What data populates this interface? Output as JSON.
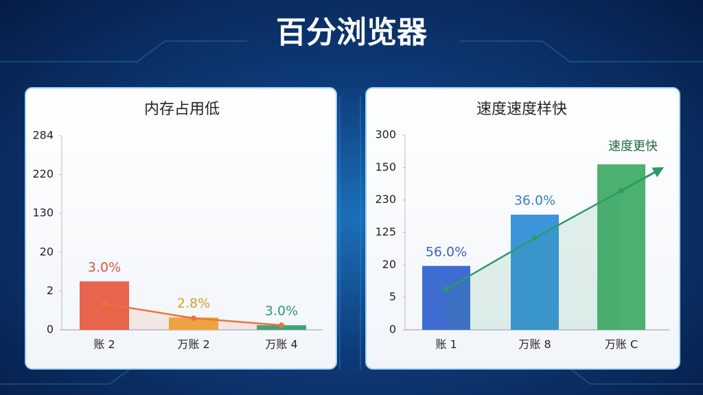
{
  "title": "百分浏览器",
  "chart_data": [
    {
      "type": "bar",
      "title": "内存占用低",
      "categories": [
        "账 2",
        "万账 2",
        "万账 4"
      ],
      "values": [
        1.25,
        0.32,
        0.12
      ],
      "colors": [
        "#e8644c",
        "#f0aa44",
        "#3aa57c"
      ],
      "line": {
        "values": [
          0.67,
          0.3,
          0.12
        ],
        "color": "#e8743c"
      },
      "annotations": [
        "3.0%",
        "2.8%",
        "3.0%"
      ],
      "annotation_colors": [
        "#d9523a",
        "#e09a2c",
        "#2f9a6a"
      ],
      "ylim": [
        0,
        5
      ],
      "yticks": [
        {
          "value": 0,
          "label": "0"
        },
        {
          "value": 1,
          "label": "2"
        },
        {
          "value": 2,
          "label": "20"
        },
        {
          "value": 3,
          "label": "130"
        },
        {
          "value": 4,
          "label": "220"
        },
        {
          "value": 5,
          "label": "284"
        }
      ]
    },
    {
      "type": "bar",
      "title": "速度速度样快",
      "categories": [
        "账 1",
        "万账 8",
        "万账 C"
      ],
      "values": [
        1.97,
        3.55,
        5.1
      ],
      "colors": [
        "#3f6cd0",
        "#3c95da",
        "#4cb070"
      ],
      "line": {
        "values": [
          1.25,
          2.83,
          4.29
        ],
        "color": "#2e9a66"
      },
      "annotations": [
        "56.0%",
        "36.0%"
      ],
      "annotation_colors": [
        "#3a62c0",
        "#3a7fc4"
      ],
      "callout": "速度更快",
      "ylim": [
        0,
        6
      ],
      "yticks": [
        {
          "value": 0,
          "label": "0"
        },
        {
          "value": 1,
          "label": "5"
        },
        {
          "value": 2,
          "label": "20"
        },
        {
          "value": 3,
          "label": "125"
        },
        {
          "value": 4,
          "label": "230"
        },
        {
          "value": 5,
          "label": "150"
        },
        {
          "value": 6,
          "label": "300"
        }
      ]
    }
  ]
}
